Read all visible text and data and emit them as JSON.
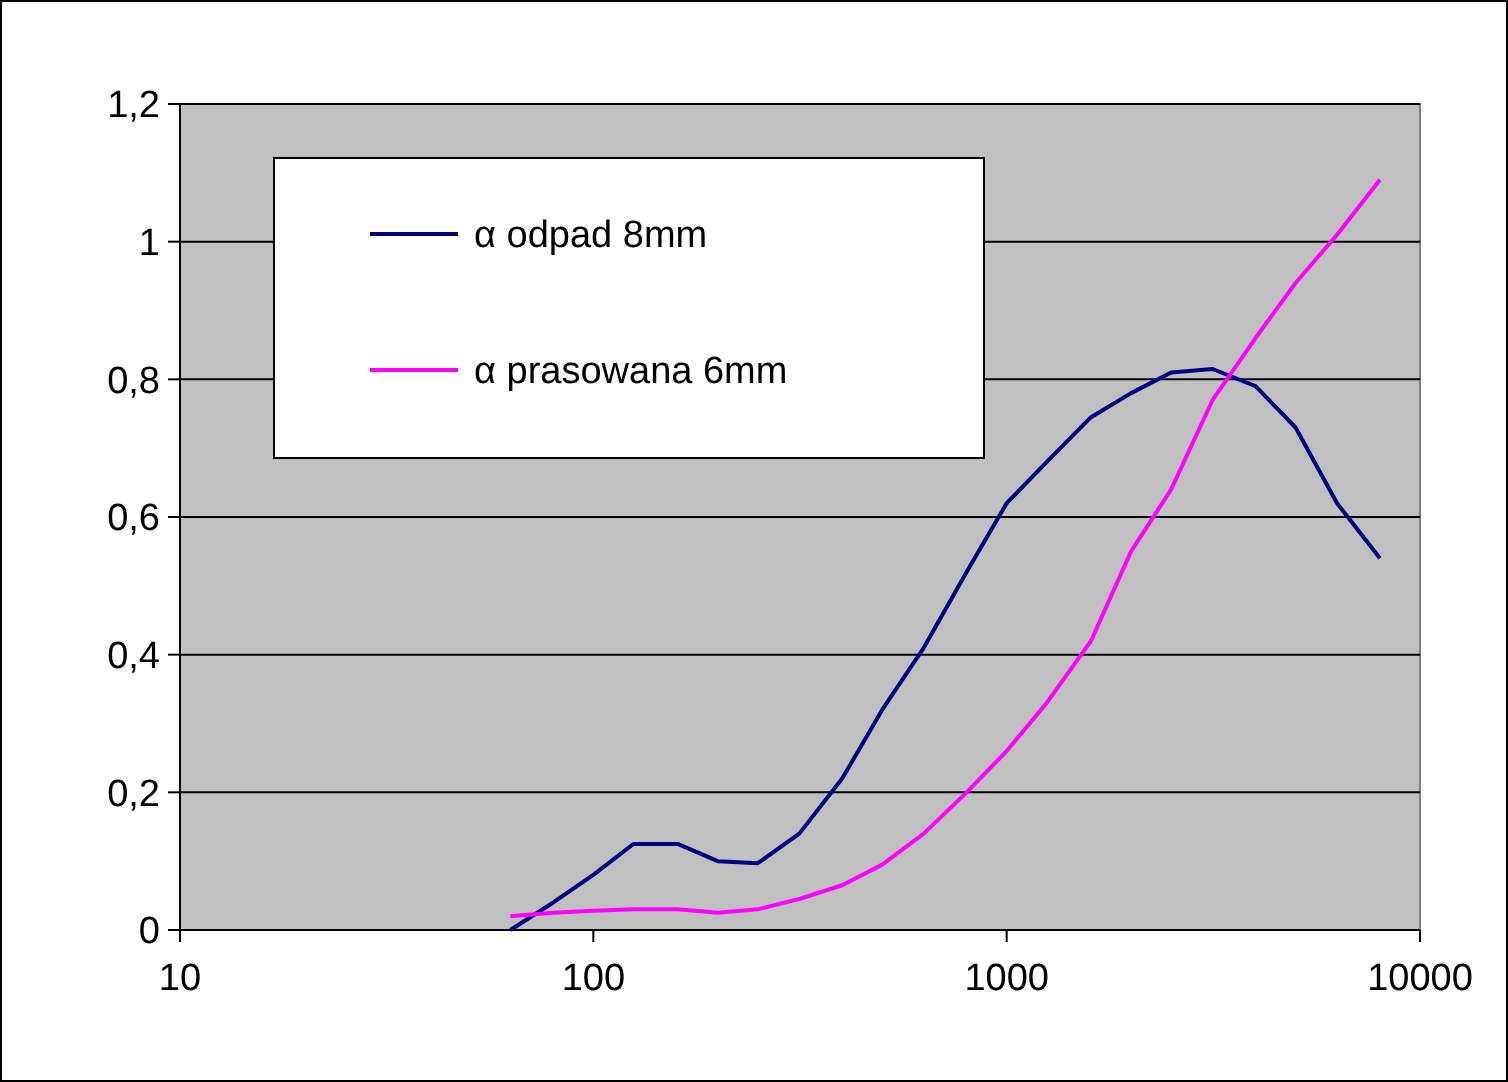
{
  "chart_data": {
    "type": "line",
    "log": "x",
    "x": [
      63,
      80,
      100,
      125,
      160,
      200,
      250,
      315,
      400,
      500,
      630,
      800,
      1000,
      1250,
      1600,
      2000,
      2500,
      3150,
      4000,
      5000,
      6300,
      8000
    ],
    "series": [
      {
        "name": "α odpad 8mm",
        "color": "#000080",
        "values": [
          0,
          0.04,
          0.08,
          0.125,
          0.125,
          0.1,
          0.097,
          0.14,
          0.22,
          0.32,
          0.41,
          0.52,
          0.62,
          0.68,
          0.745,
          0.78,
          0.81,
          0.815,
          0.79,
          0.73,
          0.62,
          0.54
        ]
      },
      {
        "name": "α prasowana 6mm",
        "color": "#ff00ff",
        "values": [
          0.02,
          0.025,
          0.028,
          0.03,
          0.03,
          0.025,
          0.03,
          0.045,
          0.065,
          0.095,
          0.14,
          0.2,
          0.26,
          0.33,
          0.42,
          0.55,
          0.64,
          0.77,
          0.86,
          0.94,
          1.01,
          1.09
        ]
      }
    ],
    "xlim": [
      10,
      10000
    ],
    "xticks": [
      10,
      100,
      1000,
      10000
    ],
    "ylim": [
      0,
      1.2
    ],
    "yticks": [
      0,
      {
        "value": 0.2,
        "label": "0,2"
      },
      {
        "value": 0.4,
        "label": "0,4"
      },
      {
        "value": 0.6,
        "label": "0,6"
      },
      {
        "value": 0.8,
        "label": "0,8"
      },
      1,
      {
        "value": 1.2,
        "label": "1,2"
      }
    ],
    "grid": "y",
    "legend": "top left",
    "marker": "none",
    "line_style": "solid"
  }
}
